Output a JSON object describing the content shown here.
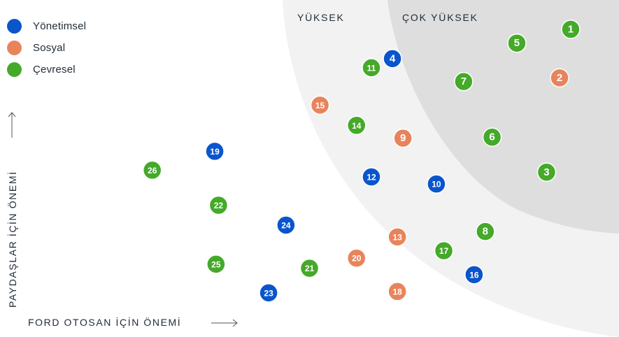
{
  "colors": {
    "governance": "#0a55cc",
    "social": "#e8845c",
    "environmental": "#45a929",
    "zone_high": "#f2f2f2",
    "zone_very_high": "#dedede"
  },
  "legend": [
    {
      "label": "Yönetimsel",
      "key": "governance"
    },
    {
      "label": "Sosyal",
      "key": "social"
    },
    {
      "label": "Çevresel",
      "key": "environmental"
    }
  ],
  "zones": {
    "high": "YÜKSEK",
    "very_high": "ÇOK YÜKSEK"
  },
  "chart_data": {
    "type": "scatter",
    "title": "",
    "xlabel": "FORD OTOSAN İÇİN ÖNEMİ",
    "ylabel": "PAYDAŞLAR İÇİN ÖNEMİ",
    "grid": false,
    "legend_placement": "top-left",
    "series": [
      {
        "name": "Yönetimsel",
        "key": "governance",
        "points": [
          {
            "id": "4",
            "x": 63.4,
            "y": 82.6
          },
          {
            "id": "10",
            "x": 70.5,
            "y": 45.4
          },
          {
            "id": "12",
            "x": 60.0,
            "y": 47.5
          },
          {
            "id": "16",
            "x": 76.6,
            "y": 18.5
          },
          {
            "id": "19",
            "x": 34.7,
            "y": 55.1
          },
          {
            "id": "23",
            "x": 43.4,
            "y": 13.1
          },
          {
            "id": "24",
            "x": 46.2,
            "y": 33.2
          }
        ]
      },
      {
        "name": "Sosyal",
        "key": "social",
        "points": [
          {
            "id": "2",
            "x": 90.4,
            "y": 76.9
          },
          {
            "id": "9",
            "x": 65.1,
            "y": 59.0
          },
          {
            "id": "13",
            "x": 64.2,
            "y": 29.7
          },
          {
            "id": "15",
            "x": 51.7,
            "y": 68.8
          },
          {
            "id": "18",
            "x": 64.2,
            "y": 13.5
          },
          {
            "id": "20",
            "x": 57.6,
            "y": 23.4
          }
        ]
      },
      {
        "name": "Çevresel",
        "key": "environmental",
        "points": [
          {
            "id": "1",
            "x": 92.2,
            "y": 91.3
          },
          {
            "id": "3",
            "x": 88.3,
            "y": 48.9
          },
          {
            "id": "5",
            "x": 83.5,
            "y": 87.2
          },
          {
            "id": "6",
            "x": 79.5,
            "y": 59.3
          },
          {
            "id": "7",
            "x": 74.9,
            "y": 75.8
          },
          {
            "id": "8",
            "x": 78.4,
            "y": 31.3
          },
          {
            "id": "11",
            "x": 60.0,
            "y": 79.9
          },
          {
            "id": "14",
            "x": 57.6,
            "y": 62.8
          },
          {
            "id": "17",
            "x": 71.7,
            "y": 25.6
          },
          {
            "id": "21",
            "x": 50.0,
            "y": 20.4
          },
          {
            "id": "22",
            "x": 35.3,
            "y": 39.1
          },
          {
            "id": "25",
            "x": 34.9,
            "y": 21.6
          },
          {
            "id": "26",
            "x": 24.6,
            "y": 49.5
          }
        ]
      }
    ]
  }
}
